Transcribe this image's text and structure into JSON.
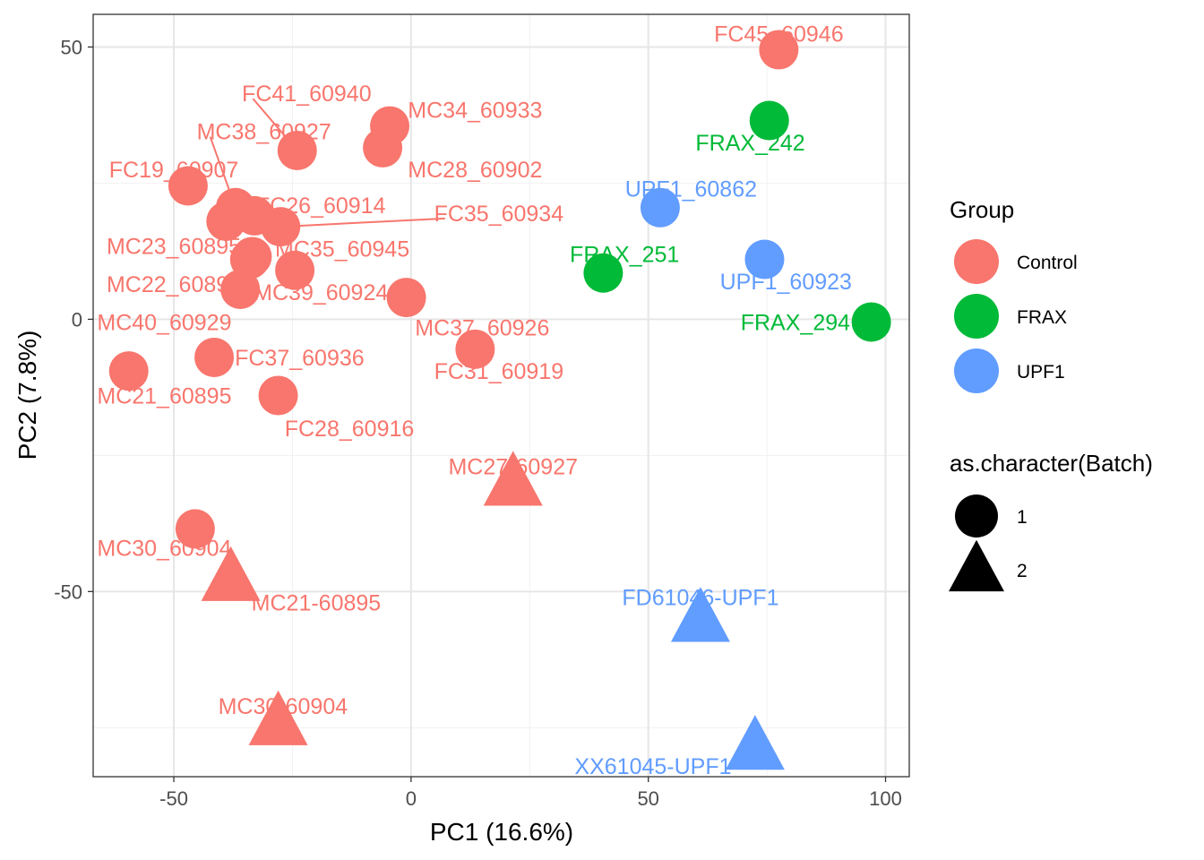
{
  "chart_data": {
    "type": "scatter",
    "title": "",
    "xlabel": "PC1 (16.6%)",
    "ylabel": "PC2 (7.8%)",
    "xlim": [
      -67,
      105
    ],
    "ylim": [
      -84,
      56
    ],
    "x_ticks": [
      -50,
      0,
      50,
      100
    ],
    "y_ticks": [
      -50,
      0,
      50
    ],
    "x_tick_labels": [
      "-50",
      "0",
      "50",
      "100"
    ],
    "y_tick_labels": [
      "-50",
      "0",
      "50"
    ],
    "grid": true,
    "legend_position": "right",
    "group_legend": {
      "title": "Group",
      "entries": [
        {
          "name": "Control",
          "color": "#F8766D"
        },
        {
          "name": "FRAX",
          "color": "#00BA38"
        },
        {
          "name": "UPF1",
          "color": "#619CFF"
        }
      ]
    },
    "shape_legend": {
      "title": "as.character(Batch)",
      "entries": [
        {
          "name": "1",
          "shape": "circle"
        },
        {
          "name": "2",
          "shape": "triangle"
        }
      ]
    },
    "points": [
      {
        "label": "FC45_60946",
        "group": "Control",
        "batch": "1",
        "x": 77.5,
        "y": 49.5,
        "lx": 77.5,
        "ly": 52.5
      },
      {
        "label": "MC34_60933",
        "group": "Control",
        "batch": "1",
        "x": -4.5,
        "y": 35.5,
        "lx": 13.5,
        "ly": 38.5
      },
      {
        "label": "MC28_60902",
        "group": "Control",
        "batch": "1",
        "x": -6,
        "y": 31.5,
        "lx": 13.5,
        "ly": 27.5
      },
      {
        "label": "FC41_60940",
        "group": "Control",
        "batch": "1",
        "x": -24,
        "y": 31,
        "lx": -22,
        "ly": 41.5,
        "leader": true
      },
      {
        "label": "MC38_60927",
        "group": "Control",
        "batch": "1",
        "x": -37,
        "y": 20.5,
        "lx": -31,
        "ly": 34.5,
        "leader": true
      },
      {
        "label": "FC19_60907",
        "group": "Control",
        "batch": "1",
        "x": -47,
        "y": 24.5,
        "lx": -50,
        "ly": 27.5
      },
      {
        "label": "FC26_60914",
        "group": "Control",
        "batch": "1",
        "x": -33,
        "y": 19,
        "lx": -19,
        "ly": 21
      },
      {
        "label": "FC35_60934",
        "group": "Control",
        "batch": "1",
        "x": -27.5,
        "y": 17,
        "lx": 18.5,
        "ly": 19.5,
        "leader": true
      },
      {
        "label": "MC23_60895",
        "group": "Control",
        "batch": "1",
        "x": -39,
        "y": 18,
        "lx": -50,
        "ly": 13.5
      },
      {
        "label": "MC35_60945",
        "group": "Control",
        "batch": "1",
        "x": -34,
        "y": 11,
        "lx": -14.5,
        "ly": 13
      },
      {
        "label": "MC22_60896",
        "group": "Control",
        "batch": "1",
        "x": -33.5,
        "y": 11.5,
        "lx": -50,
        "ly": 6.5
      },
      {
        "label": "MC39_60924",
        "group": "Control",
        "batch": "1",
        "x": -24.5,
        "y": 9,
        "lx": -19,
        "ly": 5
      },
      {
        "label": "MC40_60929",
        "group": "Control",
        "batch": "1",
        "x": -36,
        "y": 5.5,
        "lx": -52,
        "ly": -0.5
      },
      {
        "label": "MC37_60926",
        "group": "Control",
        "batch": "1",
        "x": -1,
        "y": 4,
        "lx": 15,
        "ly": -1.5
      },
      {
        "label": "FC37_60936",
        "group": "Control",
        "batch": "1",
        "x": -41.5,
        "y": -7,
        "lx": -23.5,
        "ly": -7
      },
      {
        "label": "FC31_60919",
        "group": "Control",
        "batch": "1",
        "x": 13.5,
        "y": -5.5,
        "lx": 18.5,
        "ly": -9.5
      },
      {
        "label": "MC21_60895",
        "group": "Control",
        "batch": "1",
        "x": -59.5,
        "y": -9.5,
        "lx": -52,
        "ly": -14
      },
      {
        "label": "FC28_60916",
        "group": "Control",
        "batch": "1",
        "x": -28,
        "y": -14,
        "lx": -13,
        "ly": -20
      },
      {
        "label": "MC30_60904",
        "group": "Control",
        "batch": "1",
        "x": -45.5,
        "y": -38.5,
        "lx": -52,
        "ly": -42
      },
      {
        "label": "MC27-60927",
        "group": "Control",
        "batch": "2",
        "x": 21.5,
        "y": -30,
        "lx": 21.5,
        "ly": -27
      },
      {
        "label": "MC21-60895",
        "group": "Control",
        "batch": "2",
        "x": -38,
        "y": -47.5,
        "lx": -20,
        "ly": -52
      },
      {
        "label": "MC30-60904",
        "group": "Control",
        "batch": "2",
        "x": -28,
        "y": -74,
        "lx": -27,
        "ly": -71
      },
      {
        "label": "FRAX_242",
        "group": "FRAX",
        "batch": "1",
        "x": 75.5,
        "y": 36.5,
        "lx": 71.5,
        "ly": 32.5
      },
      {
        "label": "FRAX_251",
        "group": "FRAX",
        "batch": "1",
        "x": 40.5,
        "y": 8.5,
        "lx": 45,
        "ly": 12
      },
      {
        "label": "FRAX_294",
        "group": "FRAX",
        "batch": "1",
        "x": 97,
        "y": -0.5,
        "lx": 81,
        "ly": -0.5
      },
      {
        "label": "UPF1_60862",
        "group": "UPF1",
        "batch": "1",
        "x": 52.5,
        "y": 20.5,
        "lx": 59,
        "ly": 24
      },
      {
        "label": "UPF1_60923",
        "group": "UPF1",
        "batch": "1",
        "x": 74.5,
        "y": 11,
        "lx": 79,
        "ly": 7
      },
      {
        "label": "FD61046-UPF1",
        "group": "UPF1",
        "batch": "2",
        "x": 61,
        "y": -55,
        "lx": 61,
        "ly": -51
      },
      {
        "label": "XX61045-UPF1",
        "group": "UPF1",
        "batch": "2",
        "x": 72.5,
        "y": -78.5,
        "lx": 51,
        "ly": -82
      }
    ]
  }
}
